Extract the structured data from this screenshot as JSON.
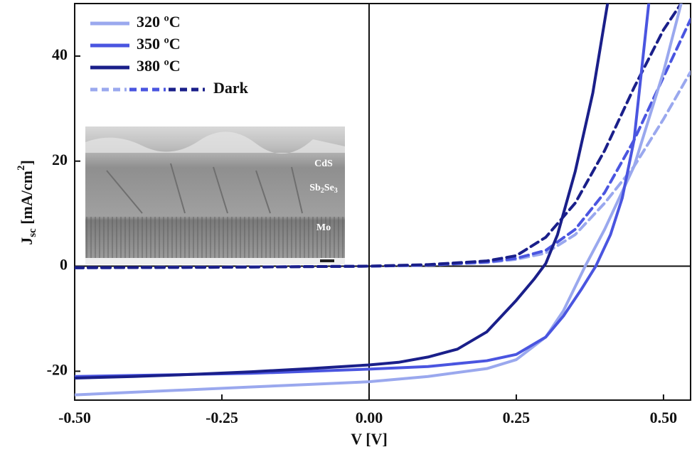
{
  "chart_data": {
    "type": "line",
    "xlabel": "V [V]",
    "ylabel": [
      "J",
      "sc",
      " [mA/cm",
      "2",
      "]"
    ],
    "xlim": [
      -0.5,
      0.546
    ],
    "ylim": [
      -25.5,
      50
    ],
    "xticks": [
      {
        "value": -0.5,
        "label": "-0.50"
      },
      {
        "value": -0.25,
        "label": "-0.25"
      },
      {
        "value": 0,
        "label": "0.00"
      },
      {
        "value": 0.25,
        "label": "0.25"
      },
      {
        "value": 0.5,
        "label": "0.50"
      }
    ],
    "yticks": [
      -20,
      0,
      20,
      40
    ],
    "legend": "upper left",
    "series": [
      {
        "name": "320 ºC",
        "color": "#9aa8ee",
        "x": [
          -0.5,
          -0.4,
          -0.3,
          -0.2,
          -0.1,
          0,
          0.1,
          0.2,
          0.25,
          0.3,
          0.33,
          0.367,
          0.4,
          0.45,
          0.5,
          0.53
        ],
        "values": [
          -24.5,
          -24,
          -23.5,
          -23,
          -22.5,
          -22,
          -21,
          -19.5,
          -17.8,
          -13.5,
          -8.5,
          0,
          7,
          19,
          37,
          50
        ]
      },
      {
        "name": "350 ºC",
        "color": "#4a55e0",
        "x": [
          -0.5,
          -0.4,
          -0.3,
          -0.2,
          -0.1,
          0,
          0.1,
          0.2,
          0.25,
          0.3,
          0.33,
          0.36,
          0.385,
          0.41,
          0.43,
          0.45,
          0.475
        ],
        "values": [
          -21,
          -20.8,
          -20.6,
          -20.4,
          -20,
          -19.6,
          -19.1,
          -18,
          -16.8,
          -13.5,
          -9.5,
          -4.5,
          0,
          6,
          13,
          24,
          50
        ]
      },
      {
        "name": "380 ºC",
        "color": "#1a1f8a",
        "x": [
          -0.5,
          -0.4,
          -0.3,
          -0.2,
          -0.1,
          0,
          0.05,
          0.1,
          0.15,
          0.2,
          0.25,
          0.28,
          0.3,
          0.32,
          0.35,
          0.38,
          0.405
        ],
        "values": [
          -21.3,
          -21,
          -20.6,
          -20.1,
          -19.5,
          -18.8,
          -18.3,
          -17.3,
          -15.8,
          -12.5,
          -6.5,
          -2.5,
          0.5,
          6,
          18,
          33,
          50
        ]
      }
    ],
    "dark": {
      "name": "Dark",
      "series": [
        {
          "color": "#9aa8ee",
          "x": [
            -0.5,
            -0.25,
            0,
            0.1,
            0.2,
            0.25,
            0.3,
            0.35,
            0.4,
            0.45,
            0.5,
            0.546
          ],
          "values": [
            -0.3,
            -0.2,
            0,
            0.2,
            0.7,
            1.3,
            2.5,
            6,
            12,
            19,
            28,
            37
          ]
        },
        {
          "color": "#4a55e0",
          "x": [
            -0.5,
            -0.25,
            0,
            0.1,
            0.2,
            0.25,
            0.3,
            0.35,
            0.4,
            0.45,
            0.5,
            0.546
          ],
          "values": [
            -0.3,
            -0.2,
            0,
            0.2,
            0.8,
            1.5,
            3,
            7,
            14,
            24,
            36,
            47
          ]
        },
        {
          "color": "#1a1f8a",
          "x": [
            -0.5,
            -0.25,
            0,
            0.1,
            0.2,
            0.25,
            0.3,
            0.35,
            0.4,
            0.45,
            0.5,
            0.53
          ],
          "values": [
            -0.3,
            -0.2,
            0,
            0.3,
            1,
            2,
            5.5,
            12,
            22,
            34,
            45,
            50
          ]
        }
      ]
    },
    "inset": {
      "labels": [
        "CdS",
        [
          "Sb",
          "2",
          "Se",
          "3"
        ],
        "Mo"
      ]
    }
  }
}
